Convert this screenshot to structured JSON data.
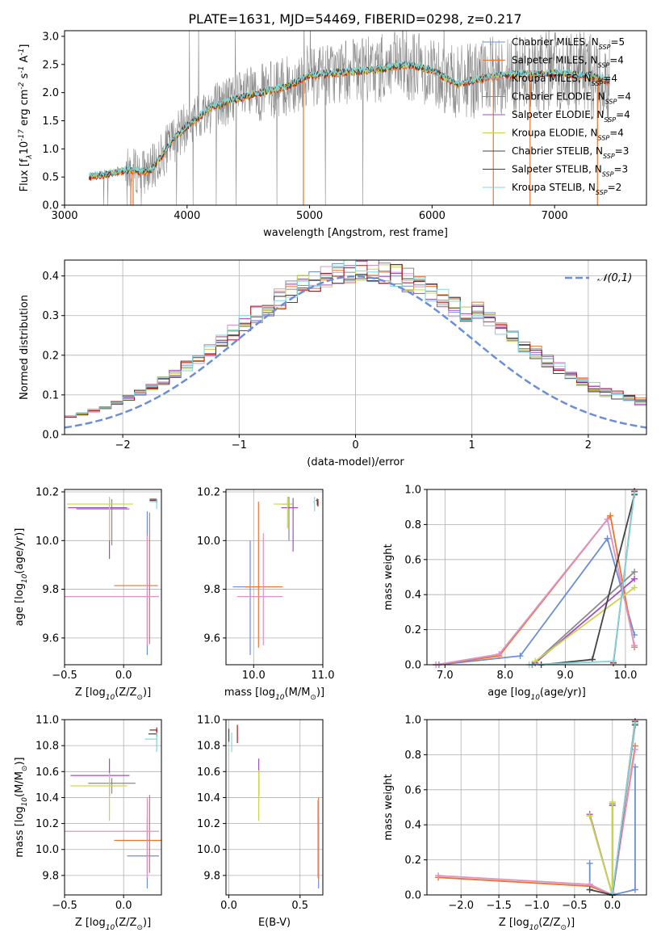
{
  "figure_title": "PLATE=1631, MJD=54469, FIBERID=0298, z=0.217",
  "colors": {
    "Chabrier MILES": "#6a8fd8",
    "Salpeter MILES": "#e8752f",
    "Kroupa MILES": "#e091c6",
    "Chabrier ELODIE": "#8a8a8a",
    "Salpeter ELODIE": "#a34dc4",
    "Kroupa ELODIE": "#c9d64a",
    "Chabrier STELIB": "#444444",
    "Salpeter STELIB": "#a81818",
    "Kroupa STELIB": "#7fd8e0",
    "normal": "#6a8fd8"
  },
  "chart_data": [
    {
      "id": "spectrum",
      "type": "line",
      "title": "",
      "xlabel": "wavelength [Angstrom, rest frame]",
      "ylabel": "Flux [f$_\\lambda$10$^{-17}$ erg cm$^{-2}$ s$^{-1}$ A$^{-1}$]",
      "xlim": [
        3000,
        7750
      ],
      "ylim": [
        0,
        3.1
      ],
      "xticks": [
        3000,
        4000,
        5000,
        6000,
        7000
      ],
      "yticks": [
        0.0,
        0.5,
        1.0,
        1.5,
        2.0,
        2.5,
        3.0
      ],
      "grid": false,
      "legend_position": "top-right",
      "legend": [
        {
          "model": "Chabrier MILES",
          "n": "5"
        },
        {
          "model": "Salpeter MILES",
          "n": "4"
        },
        {
          "model": "Kroupa MILES",
          "n": "4"
        },
        {
          "model": "Chabrier ELODIE",
          "n": "4"
        },
        {
          "model": "Salpeter ELODIE",
          "n": "4"
        },
        {
          "model": "Kroupa ELODIE",
          "n": "4"
        },
        {
          "model": "Chabrier STELIB",
          "n": "3"
        },
        {
          "model": "Salpeter STELIB",
          "n": "3"
        },
        {
          "model": "Kroupa STELIB",
          "n": "2"
        }
      ],
      "continuum_x": [
        3200,
        3500,
        3700,
        3900,
        4000,
        4200,
        4500,
        4800,
        5000,
        5200,
        5500,
        5800,
        6000,
        6200,
        6500,
        7000,
        7300,
        7450
      ],
      "continuum_y": [
        0.5,
        0.62,
        0.6,
        1.2,
        1.4,
        1.75,
        1.95,
        2.1,
        2.3,
        2.35,
        2.4,
        2.5,
        2.4,
        2.15,
        2.3,
        2.35,
        2.3,
        2.2
      ]
    },
    {
      "id": "residuals",
      "type": "line",
      "xlabel": "(data-model)/error",
      "ylabel": "Normed distribution",
      "xlim": [
        -2.5,
        2.5
      ],
      "ylim": [
        0,
        0.44
      ],
      "xticks": [
        -2,
        -1,
        0,
        1,
        2
      ],
      "yticks": [
        0.0,
        0.1,
        0.2,
        0.3,
        0.4
      ],
      "grid": true,
      "legend_position": "top-right",
      "legend": [
        "$\\mathcal{N}(0,1)$"
      ],
      "normal": {
        "mean": 0,
        "sigma": 1
      }
    },
    {
      "id": "age-vs-Z",
      "type": "scatter",
      "xlabel": "Z [log$_{10}$(Z/Z$_\\odot$)]",
      "ylabel": "age  [log$_{10}$(age/yr)]",
      "xlim": [
        -0.5,
        0.32
      ],
      "ylim": [
        9.49,
        10.21
      ],
      "xticks": [
        -0.5,
        0.0
      ],
      "yticks": [
        9.6,
        9.8,
        10.0,
        10.2
      ],
      "grid": true,
      "points": [
        {
          "model": "Chabrier MILES",
          "x": 0.2,
          "y": 9.79,
          "xerr": 0.0,
          "yerr": [
            0.26,
            0.33
          ]
        },
        {
          "model": "Salpeter MILES",
          "x": 0.22,
          "y": 9.815,
          "xerr": [
            0.3,
            0.07
          ],
          "yerr": [
            0.24,
            0.3
          ]
        },
        {
          "model": "Kroupa MILES",
          "x": 0.2,
          "y": 9.77,
          "xerr": [
            0.7,
            0.1
          ],
          "yerr": [
            0.2,
            0.25
          ]
        },
        {
          "model": "Chabrier ELODIE",
          "x": -0.1,
          "y": 10.13,
          "xerr": [
            0.3,
            0.15
          ],
          "yerr": [
            0.15,
            0.04
          ]
        },
        {
          "model": "Salpeter ELODIE",
          "x": -0.12,
          "y": 10.135,
          "xerr": [
            0.35,
            0.15
          ],
          "yerr": [
            0.21,
            0.04
          ]
        },
        {
          "model": "Kroupa ELODIE",
          "x": -0.12,
          "y": 10.15,
          "xerr": [
            0.36,
            0.2
          ],
          "yerr": [
            0.15,
            0.03
          ]
        },
        {
          "model": "Chabrier STELIB",
          "x": 0.28,
          "y": 10.165,
          "xerr": [
            0.06,
            0.0
          ],
          "yerr": [
            0.01,
            0.0
          ]
        },
        {
          "model": "Salpeter STELIB",
          "x": 0.28,
          "y": 10.17,
          "xerr": [
            0.06,
            0.0
          ],
          "yerr": [
            0.01,
            0.0
          ]
        },
        {
          "model": "Kroupa STELIB",
          "x": 0.28,
          "y": 10.16,
          "xerr": [
            0.06,
            0.0
          ],
          "yerr": [
            0.03,
            0.01
          ]
        }
      ]
    },
    {
      "id": "age-vs-mass",
      "type": "scatter",
      "xlabel": "mass [log$_{10}$(M/M$_\\odot$)]",
      "ylabel": "",
      "xlim": [
        9.6,
        11.0
      ],
      "ylim": [
        9.49,
        10.21
      ],
      "xticks": [
        10,
        11
      ],
      "yticks": [
        9.6,
        9.8,
        10.0,
        10.2
      ],
      "grid": true,
      "points": [
        {
          "model": "Chabrier MILES",
          "x": 9.95,
          "y": 9.81,
          "xerr": [
            0.25,
            0.0
          ],
          "yerr": [
            0.28,
            0.19
          ]
        },
        {
          "model": "Salpeter MILES",
          "x": 10.07,
          "y": 9.81,
          "xerr": [
            0.2,
            0.35
          ],
          "yerr": [
            0.25,
            0.35
          ]
        },
        {
          "model": "Kroupa MILES",
          "x": 10.14,
          "y": 9.77,
          "xerr": [
            0.38,
            0.28
          ],
          "yerr": [
            0.2,
            0.26
          ]
        },
        {
          "model": "Chabrier ELODIE",
          "x": 10.51,
          "y": 10.15,
          "xerr": [
            0.1,
            0.04
          ],
          "yerr": [
            0.15,
            0.03
          ]
        },
        {
          "model": "Salpeter ELODIE",
          "x": 10.57,
          "y": 10.135,
          "xerr": [
            0.17,
            0.07
          ],
          "yerr": [
            0.18,
            0.04
          ]
        },
        {
          "model": "Kroupa ELODIE",
          "x": 10.49,
          "y": 10.15,
          "xerr": [
            0.2,
            0.07
          ],
          "yerr": [
            0.1,
            0.03
          ]
        },
        {
          "model": "Chabrier STELIB",
          "x": 10.92,
          "y": 10.165,
          "xerr": [
            0.02,
            0.0
          ],
          "yerr": [
            0.02,
            0.0
          ]
        },
        {
          "model": "Salpeter STELIB",
          "x": 10.93,
          "y": 10.17,
          "xerr": [
            0.02,
            0.0
          ],
          "yerr": [
            0.03,
            0.0
          ]
        },
        {
          "model": "Kroupa STELIB",
          "x": 10.88,
          "y": 10.16,
          "xerr": [
            0.02,
            0.0
          ],
          "yerr": [
            0.04,
            0.02
          ]
        }
      ]
    },
    {
      "id": "mass-weight-vs-age",
      "type": "line",
      "xlabel": "age  [log$_{10}$(age/yr)]",
      "ylabel": "mass weight",
      "xlim": [
        6.7,
        10.35
      ],
      "ylim": [
        0,
        1.0
      ],
      "xticks": [
        7,
        8,
        9,
        10
      ],
      "yticks": [
        0.0,
        0.2,
        0.4,
        0.6,
        0.8,
        1.0
      ],
      "grid": true,
      "series": [
        {
          "model": "Chabrier MILES",
          "x": [
            6.9,
            8.25,
            9.7,
            10.15
          ],
          "y": [
            0.0,
            0.05,
            0.72,
            0.17
          ]
        },
        {
          "model": "Salpeter MILES",
          "x": [
            6.85,
            7.9,
            9.75,
            10.15
          ],
          "y": [
            0.0,
            0.05,
            0.85,
            0.1
          ]
        },
        {
          "model": "Kroupa MILES",
          "x": [
            6.85,
            7.9,
            9.7,
            10.15
          ],
          "y": [
            0.0,
            0.06,
            0.83,
            0.11
          ]
        },
        {
          "model": "Chabrier ELODIE",
          "x": [
            8.45,
            10.15
          ],
          "y": [
            0.0,
            0.53
          ]
        },
        {
          "model": "Salpeter ELODIE",
          "x": [
            8.5,
            10.15
          ],
          "y": [
            0.01,
            0.49
          ]
        },
        {
          "model": "Kroupa ELODIE",
          "x": [
            8.5,
            10.15
          ],
          "y": [
            0.02,
            0.44
          ]
        },
        {
          "model": "Chabrier STELIB",
          "x": [
            8.6,
            9.45,
            10.15
          ],
          "y": [
            0.0,
            0.03,
            0.97
          ]
        },
        {
          "model": "Salpeter STELIB",
          "x": [
            9.8,
            10.15
          ],
          "y": [
            0.01,
            0.99
          ]
        },
        {
          "model": "Kroupa STELIB",
          "x": [
            8.4,
            9.8,
            10.15
          ],
          "y": [
            0.0,
            0.02,
            0.98
          ]
        }
      ]
    },
    {
      "id": "mass-vs-Z",
      "type": "scatter",
      "xlabel": "Z [log$_{10}$(Z/Z$_\\odot$)]",
      "ylabel": "mass [log$_{10}$(M/M$_\\odot$)]",
      "xlim": [
        -0.5,
        0.32
      ],
      "ylim": [
        9.65,
        11.0
      ],
      "xticks": [
        -0.5,
        0.0
      ],
      "yticks": [
        9.8,
        10.0,
        10.2,
        10.4,
        10.6,
        10.8,
        11.0
      ],
      "grid": true,
      "points": [
        {
          "model": "Chabrier MILES",
          "x": 0.2,
          "y": 9.95,
          "xerr": [
            0.17,
            0.1
          ],
          "yerr": [
            0.25,
            0.3
          ]
        },
        {
          "model": "Salpeter MILES",
          "x": 0.22,
          "y": 10.07,
          "xerr": [
            0.3,
            0.1
          ],
          "yerr": [
            0.25,
            0.35
          ]
        },
        {
          "model": "Kroupa MILES",
          "x": 0.2,
          "y": 10.14,
          "xerr": [
            0.7,
            0.1
          ],
          "yerr": [
            0.36,
            0.26
          ]
        },
        {
          "model": "Chabrier ELODIE",
          "x": -0.1,
          "y": 10.51,
          "xerr": [
            0.2,
            0.2
          ],
          "yerr": [
            0.08,
            0.04
          ]
        },
        {
          "model": "Salpeter ELODIE",
          "x": -0.12,
          "y": 10.57,
          "xerr": [
            0.33,
            0.17
          ],
          "yerr": [
            0.16,
            0.13
          ]
        },
        {
          "model": "Kroupa ELODIE",
          "x": -0.12,
          "y": 10.49,
          "xerr": [
            0.33,
            0.15
          ],
          "yerr": [
            0.27,
            0.1
          ]
        },
        {
          "model": "Chabrier STELIB",
          "x": 0.28,
          "y": 10.89,
          "xerr": [
            0.07,
            0.0
          ],
          "yerr": [
            0.02,
            0.03
          ]
        },
        {
          "model": "Salpeter STELIB",
          "x": 0.28,
          "y": 10.92,
          "xerr": [
            0.06,
            0.0
          ],
          "yerr": [
            0.02,
            0.02
          ]
        },
        {
          "model": "Kroupa STELIB",
          "x": 0.28,
          "y": 10.85,
          "xerr": [
            0.1,
            0.0
          ],
          "yerr": [
            0.1,
            0.05
          ]
        }
      ]
    },
    {
      "id": "mass-vs-ebv",
      "type": "scatter",
      "xlabel": "E(B-V)",
      "ylabel": "",
      "xlim": [
        -0.02,
        0.66
      ],
      "ylim": [
        9.65,
        11.0
      ],
      "xticks": [
        0.0,
        0.5
      ],
      "yticks": [
        9.8,
        10.0,
        10.2,
        10.4,
        10.6,
        10.8,
        11.0
      ],
      "grid": true,
      "points": [
        {
          "model": "Chabrier MILES",
          "x": 0.63,
          "y": 9.95,
          "yerr": [
            0.25,
            0.3
          ]
        },
        {
          "model": "Salpeter MILES",
          "x": 0.63,
          "y": 10.07,
          "yerr": [
            0.3,
            0.33
          ]
        },
        {
          "model": "Kroupa MILES",
          "x": 0.625,
          "y": 10.14,
          "yerr": [
            0.36,
            0.24
          ]
        },
        {
          "model": "Chabrier ELODIE",
          "x": 0.21,
          "y": 10.51,
          "yerr": [
            0.1,
            0.05
          ]
        },
        {
          "model": "Salpeter ELODIE",
          "x": 0.21,
          "y": 10.57,
          "yerr": [
            0.16,
            0.13
          ]
        },
        {
          "model": "Kroupa ELODIE",
          "x": 0.21,
          "y": 10.49,
          "yerr": [
            0.27,
            0.12
          ]
        },
        {
          "model": "Chabrier STELIB",
          "x": 0.0,
          "y": 10.89,
          "yerr": [
            0.06,
            0.04
          ]
        },
        {
          "model": "Salpeter STELIB",
          "x": 0.06,
          "y": 10.92,
          "yerr": [
            0.1,
            0.04
          ]
        },
        {
          "model": "Kroupa STELIB",
          "x": 0.02,
          "y": 10.85,
          "yerr": [
            0.1,
            0.05
          ]
        }
      ]
    },
    {
      "id": "mass-weight-vs-Z",
      "type": "line",
      "xlabel": "Z [log$_{10}$(Z/Z$_\\odot$)]",
      "ylabel": "mass weight",
      "xlim": [
        -2.45,
        0.45
      ],
      "ylim": [
        0,
        1.0
      ],
      "xticks": [
        -2.0,
        -1.5,
        -1.0,
        -0.5,
        0.0
      ],
      "yticks": [
        0.0,
        0.2,
        0.4,
        0.6,
        0.8,
        1.0
      ],
      "grid": true,
      "series": [
        {
          "model": "Chabrier MILES",
          "x": [
            -0.3,
            -0.3,
            0.0,
            0.3,
            0.3
          ],
          "y": [
            0.18,
            0.06,
            0.0,
            0.03,
            0.73
          ]
        },
        {
          "model": "Salpeter MILES",
          "x": [
            -2.3,
            -0.3,
            0.0,
            0.3
          ],
          "y": [
            0.1,
            0.05,
            0.0,
            0.85
          ]
        },
        {
          "model": "Kroupa MILES",
          "x": [
            -2.3,
            -0.3,
            0.0,
            0.3
          ],
          "y": [
            0.11,
            0.06,
            0.0,
            0.83
          ]
        },
        {
          "model": "Chabrier ELODIE",
          "x": [
            -0.3,
            0.0,
            0.0
          ],
          "y": [
            0.45,
            0.0,
            0.52
          ]
        },
        {
          "model": "Salpeter ELODIE",
          "x": [
            -0.3,
            0.0,
            0.0
          ],
          "y": [
            0.46,
            0.0,
            0.51
          ]
        },
        {
          "model": "Kroupa ELODIE",
          "x": [
            -0.3,
            0.0,
            0.0
          ],
          "y": [
            0.45,
            0.0,
            0.53
          ]
        },
        {
          "model": "Chabrier STELIB",
          "x": [
            -0.3,
            0.0,
            0.3
          ],
          "y": [
            0.03,
            0.0,
            0.97
          ]
        },
        {
          "model": "Salpeter STELIB",
          "x": [
            0.0,
            0.3
          ],
          "y": [
            0.0,
            0.99
          ]
        },
        {
          "model": "Kroupa STELIB",
          "x": [
            0.0,
            0.3
          ],
          "y": [
            0.01,
            0.98
          ]
        }
      ]
    }
  ]
}
